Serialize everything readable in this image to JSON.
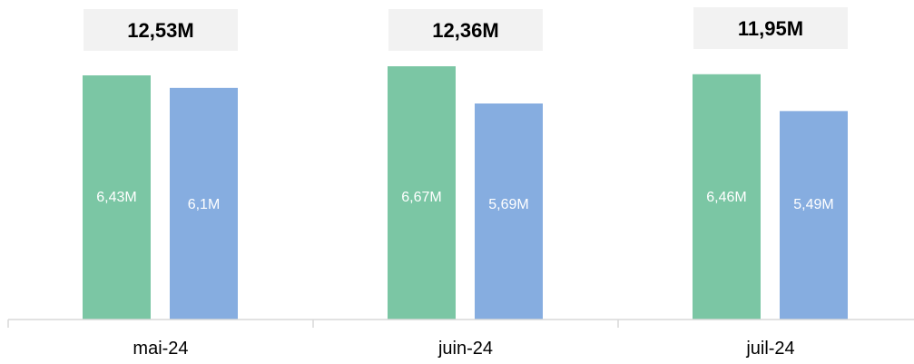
{
  "chart_data": {
    "type": "bar",
    "categories": [
      "mai-24",
      "juin-24",
      "juil-24"
    ],
    "series": [
      {
        "values": [
          6.43,
          6.67,
          6.46
        ],
        "labels": [
          "6,43M",
          "6,67M",
          "6,46M"
        ],
        "color": "#7bc6a4"
      },
      {
        "values": [
          6.1,
          5.69,
          5.49
        ],
        "labels": [
          "6,1M",
          "5,69M",
          "5,49M"
        ],
        "color": "#86ade0"
      }
    ],
    "totals": [
      "12,53M",
      "12,36M",
      "11,95M"
    ],
    "total_box_color": "#f2f2f2",
    "axis_color": "#d9d9d9",
    "ylim": [
      0,
      6.67
    ],
    "grid": false,
    "legend": "none"
  }
}
